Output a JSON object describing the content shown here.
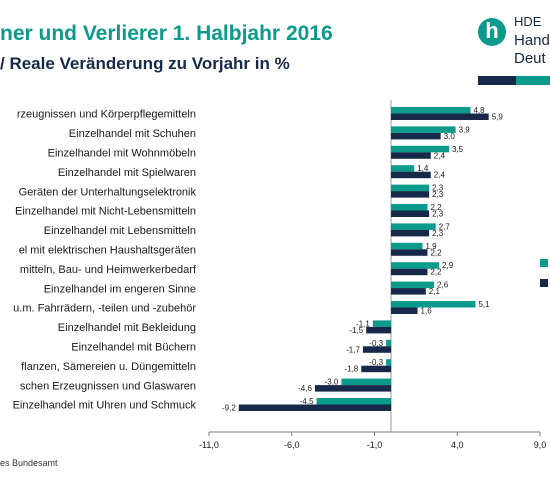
{
  "header": {
    "title": "ner und Verlierer 1. Halbjahr 2016",
    "subtitle": "/ Reale Veränderung zu Vorjahr in %"
  },
  "logo": {
    "line1": "HDE",
    "line2": "Hand",
    "line3": "Deut"
  },
  "source": "es Bundesamt",
  "colors": {
    "series_a": "#0b9a8b",
    "series_b": "#16294a"
  },
  "chart_data": {
    "type": "bar",
    "orientation": "horizontal",
    "title": "",
    "xlabel": "",
    "ylabel": "",
    "xlim": [
      -11.0,
      9.0
    ],
    "xticks": [
      "-11,0",
      "-6,0",
      "-1,0",
      "4,0",
      "9,0"
    ],
    "xtick_values": [
      -11,
      -6,
      -1,
      4,
      9
    ],
    "grid": false,
    "legend_position": "right",
    "categories": [
      "rzeugnissen und Körperpflegemitteln",
      "Einzelhandel mit Schuhen",
      "Einzelhandel mit Wohnmöbeln",
      "Einzelhandel mit Spielwaren",
      "Geräten der Unterhaltungselektronik",
      "Einzelhandel mit Nicht-Lebensmitteln",
      "Einzelhandel mit Lebensmitteln",
      "el mit elektrischen Haushaltsgeräten",
      "mitteln, Bau- und Heimwerkerbedarf",
      "Einzelhandel im engeren Sinne",
      "u.m. Fahrrädern, -teilen und -zubehör",
      "Einzelhandel mit Bekleidung",
      "Einzelhandel mit Büchern",
      "flanzen, Sämereien u. Düngemitteln",
      "schen Erzeugnissen und Glaswaren",
      "Einzelhandel mit Uhren und Schmuck"
    ],
    "series": [
      {
        "values": [
          4.8,
          3.9,
          3.5,
          1.4,
          2.3,
          2.2,
          2.7,
          1.9,
          2.9,
          2.6,
          5.1,
          -1.1,
          -0.3,
          -0.3,
          -3.0,
          -4.5
        ],
        "labels": [
          "4,8",
          "3,9",
          "3,5",
          "1,4",
          "2,3",
          "2,2",
          "2,7",
          "1,9",
          "2,9",
          "2,6",
          "5,1",
          "-1,1",
          "-0,3",
          "-0,3",
          "-3,0",
          "-4,5"
        ]
      },
      {
        "values": [
          5.9,
          3.0,
          2.4,
          2.4,
          2.3,
          2.3,
          2.3,
          2.2,
          2.2,
          2.1,
          1.6,
          -1.5,
          -1.7,
          -1.8,
          -4.6,
          -9.2
        ],
        "labels": [
          "5,9",
          "3,0",
          "2,4",
          "2,4",
          "2,3",
          "2,3",
          "2,3",
          "2,2",
          "2,2",
          "2,1",
          "1,6",
          "-1,5",
          "-1,7",
          "-1,8",
          "-4,6",
          "-9,2"
        ]
      }
    ]
  }
}
